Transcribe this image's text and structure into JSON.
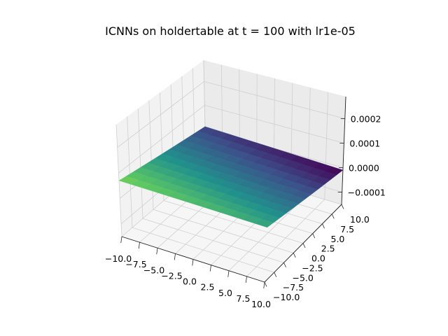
{
  "chart_data": {
    "type": "surface3d",
    "title": "ICNNs on holdertable at t = 100 with lr1e-05",
    "colormap": "viridis",
    "x_ticks": [
      "−10.0",
      "−7.5",
      "−5.0",
      "−2.5",
      "0.0",
      "2.5",
      "5.0",
      "7.5",
      "10.0"
    ],
    "y_ticks": [
      "−10.0",
      "−7.5",
      "−5.0",
      "−2.5",
      "0.0",
      "2.5",
      "5.0",
      "7.5",
      "10.0"
    ],
    "z_ticks": [
      "−0.0001",
      "0.0000",
      "0.0001",
      "0.0002"
    ],
    "xlim": [
      -10,
      10
    ],
    "ylim": [
      -10,
      10
    ],
    "zlim": [
      -0.00015,
      0.00029
    ],
    "surface_corners_z": {
      "x_min_y_min": 7e-05,
      "x_max_y_min": 5e-05,
      "x_min_y_max": 1e-05,
      "x_max_y_max": -1e-05
    },
    "surface_z_range": [
      -1e-05,
      9e-05
    ]
  }
}
